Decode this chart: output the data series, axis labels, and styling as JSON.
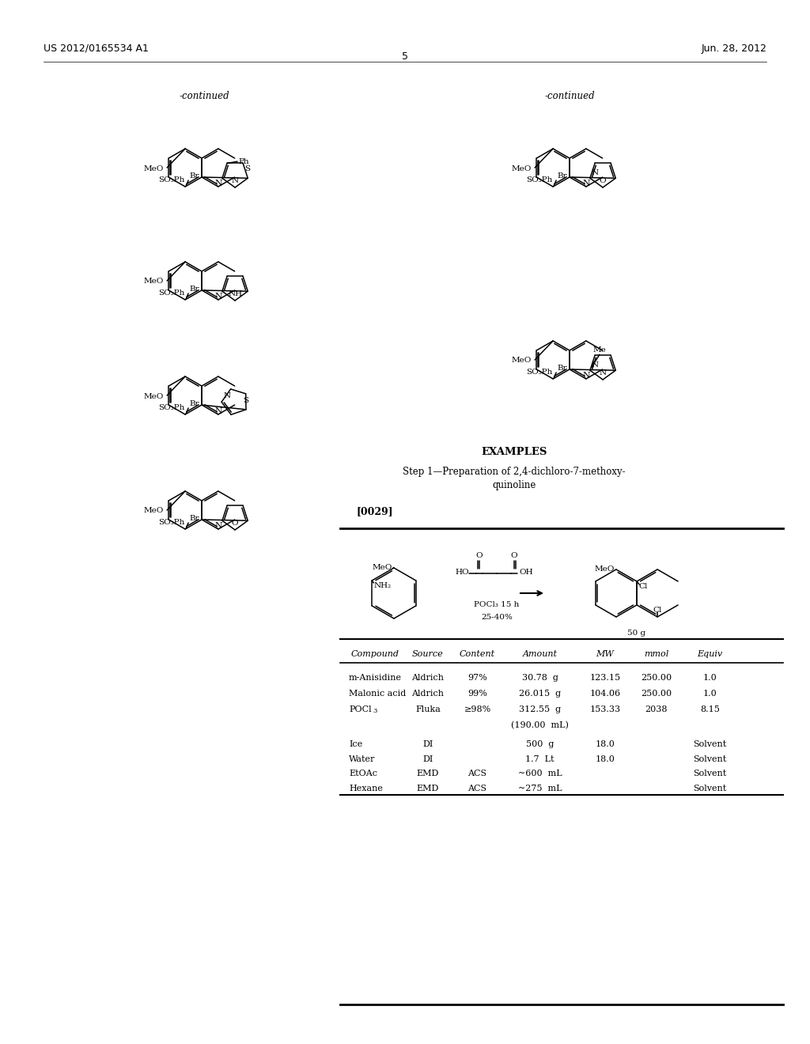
{
  "page_header_left": "US 2012/0165534 A1",
  "page_header_right": "Jun. 28, 2012",
  "page_number": "5",
  "continued_left": "-continued",
  "continued_right": "-continued",
  "examples_title": "EXAMPLES",
  "step_title": "Step 1—Preparation of 2,4-dichloro-7-methoxy-\nquinoline",
  "paragraph_ref": "[0029]",
  "reaction_condition1": "POCl₃ 15 h",
  "reaction_condition2": "25-40%",
  "product_label": "50 g",
  "table_columns": [
    "Compound",
    "Source",
    "Content",
    "Amount",
    "MW",
    "mmol",
    "Equiv"
  ],
  "table_rows": [
    [
      "m-Anisidine",
      "Aldrich",
      "97%",
      "30.78  g",
      "123.15",
      "250.00",
      "1.0"
    ],
    [
      "Malonic acid",
      "Aldrich",
      "99%",
      "26.015  g",
      "104.06",
      "250.00",
      "1.0"
    ],
    [
      "POCl3",
      "Fluka",
      "≥98%",
      "312.55  g",
      "153.33",
      "2038",
      "8.15"
    ],
    [
      "",
      "",
      "",
      "(190.00  mL)",
      "",
      "",
      ""
    ],
    [
      "Ice",
      "DI",
      "",
      "500  g",
      "18.0",
      "",
      "Solvent"
    ],
    [
      "Water",
      "DI",
      "",
      "1.7  Lt",
      "18.0",
      "",
      "Solvent"
    ],
    [
      "EtOAc",
      "EMD",
      "ACS",
      "~600  mL",
      "",
      "",
      "Solvent"
    ],
    [
      "Hexane",
      "EMD",
      "ACS",
      "~275  mL",
      "",
      "",
      "Solvent"
    ]
  ],
  "bg": "#ffffff"
}
